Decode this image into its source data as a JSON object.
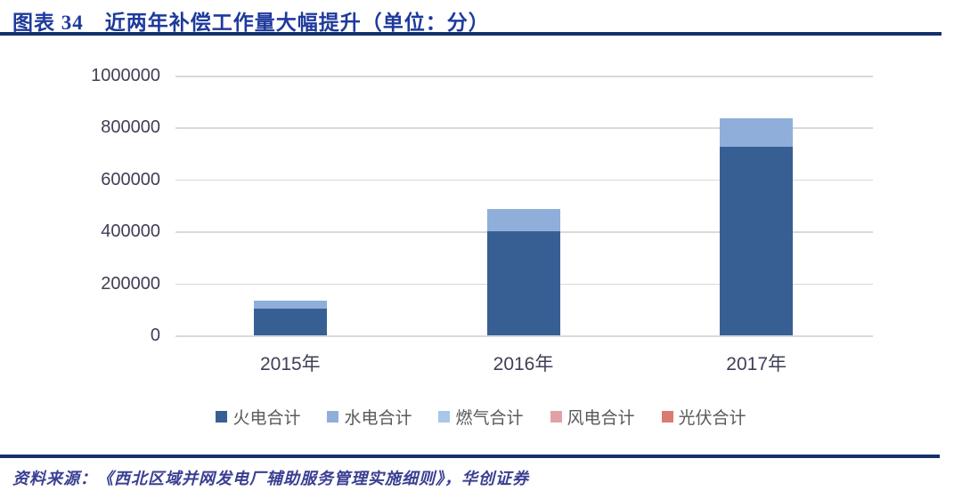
{
  "header": {
    "title": "图表 34　近两年补偿工作量大幅提升（单位：分）"
  },
  "chart_data": {
    "type": "bar",
    "stacked": true,
    "title": "近两年补偿工作量大幅提升",
    "unit": "分",
    "categories": [
      "2015年",
      "2016年",
      "2017年"
    ],
    "series": [
      {
        "name": "火电合计",
        "color": "#375F94",
        "values": [
          103000,
          400000,
          726000
        ]
      },
      {
        "name": "水电合计",
        "color": "#8FAEDA",
        "values": [
          31000,
          86000,
          110000
        ]
      },
      {
        "name": "燃气合计",
        "color": "#A9C7E8",
        "values": [
          0,
          0,
          0
        ]
      },
      {
        "name": "风电合计",
        "color": "#E2A2A5",
        "values": [
          0,
          0,
          0
        ]
      },
      {
        "name": "光伏合计",
        "color": "#DB7A72",
        "values": [
          0,
          0,
          0
        ]
      }
    ],
    "ylim": [
      0,
      1000000
    ],
    "ytick_step": 200000,
    "ytick_labels": [
      "0",
      "200000",
      "400000",
      "600000",
      "800000",
      "1000000"
    ],
    "grid": true,
    "legend_position": "bottom"
  },
  "footer": {
    "source": "资料来源：《西北区域并网发电厂辅助服务管理实施细则》，华创证券"
  },
  "colors": {
    "rule_navy": "#16306E",
    "title_blue": "#1E3A9C",
    "grid_gray": "#D9D9D9",
    "axis_text": "#3F3F56",
    "legend_text": "#595959",
    "source_text": "#3A3F92"
  }
}
